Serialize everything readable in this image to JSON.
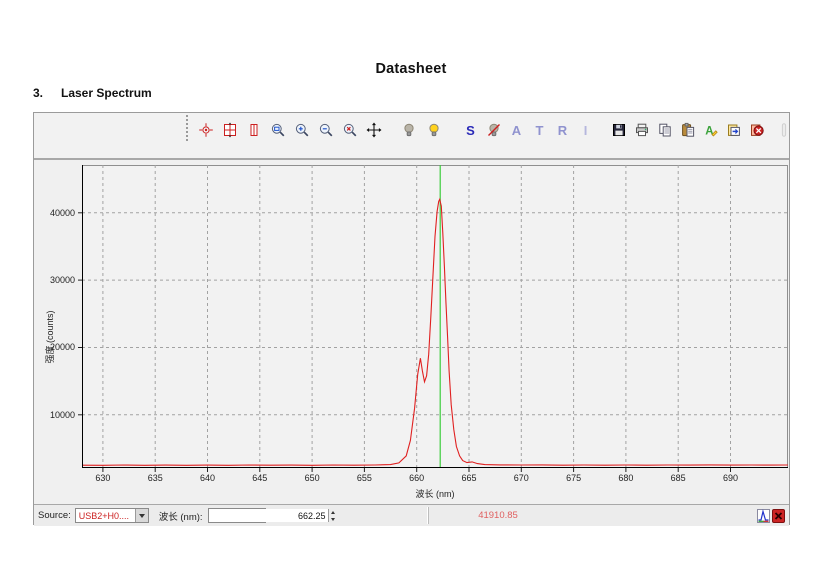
{
  "page": {
    "title": "Datasheet",
    "section_number": "3.",
    "section_title": "Laser Spectrum"
  },
  "toolbar": {
    "icons": [
      {
        "name": "select-tool-icon",
        "kind": "crosshair",
        "gap": 0
      },
      {
        "name": "scale-graph-icon",
        "kind": "grid",
        "gap": 7
      },
      {
        "name": "scale-vertical-icon",
        "kind": "bars",
        "gap": 7
      },
      {
        "name": "zoom-region-icon",
        "kind": "mag-region",
        "gap": 7
      },
      {
        "name": "zoom-in-icon",
        "kind": "mag-in",
        "gap": 7
      },
      {
        "name": "zoom-out-icon",
        "kind": "mag-out",
        "gap": 7
      },
      {
        "name": "zoom-reset-icon",
        "kind": "mag-reset",
        "gap": 7
      },
      {
        "name": "pan-icon",
        "kind": "pan",
        "gap": 7
      },
      {
        "name": "lamp-off-icon",
        "kind": "bulb",
        "color": "#b9b4a8",
        "gap": 18
      },
      {
        "name": "lamp-on-icon",
        "kind": "bulb",
        "color": "#ffd21e",
        "gap": 8
      },
      {
        "name": "scope-mode-icon",
        "kind": "letter",
        "glyph": "S",
        "color": "#2a2ab8",
        "gap": 20
      },
      {
        "name": "store-dark-spectrum-icon",
        "kind": "bulb-slash",
        "gap": 6
      },
      {
        "name": "absorbance-mode-icon",
        "kind": "letter",
        "glyph": "A",
        "color": "#9093cf",
        "gap": 6
      },
      {
        "name": "transmission-mode-icon",
        "kind": "letter",
        "glyph": "T",
        "color": "#9093cf",
        "gap": 6
      },
      {
        "name": "reflection-mode-icon",
        "kind": "letter",
        "glyph": "R",
        "color": "#9093cf",
        "gap": 6
      },
      {
        "name": "irradiance-mode-icon",
        "kind": "letter",
        "glyph": "I",
        "color": "#b5b7dd",
        "gap": 6
      },
      {
        "name": "save-icon",
        "kind": "floppy",
        "gap": 16
      },
      {
        "name": "print-icon",
        "kind": "printer",
        "gap": 6
      },
      {
        "name": "copy-icon",
        "kind": "copy",
        "gap": 6
      },
      {
        "name": "paste-icon",
        "kind": "paste",
        "gap": 6
      },
      {
        "name": "annotation-icon",
        "kind": "annotate",
        "gap": 6
      },
      {
        "name": "overlay-spectrum-icon",
        "kind": "overlay",
        "gap": 6
      },
      {
        "name": "delete-overlay-icon",
        "kind": "delete",
        "gap": 6
      },
      {
        "name": "disabled-tool-icon",
        "kind": "ghost",
        "gap": 10
      }
    ]
  },
  "chart_data": {
    "type": "line",
    "title": "",
    "xlabel": "波长 (nm)",
    "ylabel": "强度 (counts)",
    "xlim": [
      628.0,
      695.5
    ],
    "ylim": [
      2100,
      47100
    ],
    "x_ticks": [
      630,
      635,
      640,
      645,
      650,
      655,
      660,
      665,
      670,
      675,
      680,
      685,
      690
    ],
    "y_ticks": [
      10000,
      20000,
      30000,
      40000
    ],
    "grid": true,
    "legend": "none",
    "cursor": {
      "x": 662.25,
      "color": "#3ccc3c"
    },
    "peak_value": 41910.85,
    "series": [
      {
        "name": "laser-spectrum",
        "color": "#e02020",
        "points": [
          [
            628,
            2520
          ],
          [
            630,
            2500
          ],
          [
            632,
            2540
          ],
          [
            634,
            2500
          ],
          [
            636,
            2530
          ],
          [
            638,
            2500
          ],
          [
            640,
            2530
          ],
          [
            642,
            2500
          ],
          [
            644,
            2540
          ],
          [
            646,
            2510
          ],
          [
            648,
            2530
          ],
          [
            650,
            2500
          ],
          [
            652,
            2540
          ],
          [
            654,
            2510
          ],
          [
            656,
            2550
          ],
          [
            657.5,
            2600
          ],
          [
            658.3,
            2850
          ],
          [
            659,
            3900
          ],
          [
            659.4,
            6200
          ],
          [
            659.8,
            11000
          ],
          [
            660.1,
            16000
          ],
          [
            660.35,
            18400
          ],
          [
            660.55,
            16500
          ],
          [
            660.75,
            14900
          ],
          [
            660.95,
            15800
          ],
          [
            661.15,
            19000
          ],
          [
            661.35,
            24500
          ],
          [
            661.55,
            30500
          ],
          [
            661.75,
            36500
          ],
          [
            661.95,
            40200
          ],
          [
            662.1,
            41700
          ],
          [
            662.2,
            42000
          ],
          [
            662.35,
            41000
          ],
          [
            662.5,
            37000
          ],
          [
            662.65,
            32000
          ],
          [
            662.8,
            26500
          ],
          [
            662.95,
            21500
          ],
          [
            663.1,
            16500
          ],
          [
            663.3,
            11500
          ],
          [
            663.55,
            7800
          ],
          [
            663.8,
            5300
          ],
          [
            664.1,
            3900
          ],
          [
            664.4,
            3200
          ],
          [
            664.8,
            2900
          ],
          [
            665.3,
            3000
          ],
          [
            665.8,
            2750
          ],
          [
            666.5,
            2600
          ],
          [
            668,
            2560
          ],
          [
            670,
            2540
          ],
          [
            672,
            2560
          ],
          [
            674,
            2520
          ],
          [
            676,
            2550
          ],
          [
            678,
            2520
          ],
          [
            680,
            2550
          ],
          [
            682,
            2520
          ],
          [
            684,
            2550
          ],
          [
            686,
            2530
          ],
          [
            688,
            2560
          ],
          [
            690,
            2530
          ],
          [
            692,
            2550
          ],
          [
            694,
            2530
          ],
          [
            695.5,
            2540
          ]
        ]
      }
    ]
  },
  "status_bar": {
    "source_label": "Source:",
    "source_value": "USB2+H0....",
    "wavelength_label": "波长 (nm):",
    "wavelength_value": "662.25",
    "reading": "41910.85",
    "icons": [
      {
        "name": "spectrum-peak-icon"
      },
      {
        "name": "close-icon"
      }
    ]
  },
  "colors": {
    "curve": "#e02020",
    "cursor": "#3ccc3c",
    "reading_text": "#e06060",
    "source_text": "#cc2222"
  }
}
